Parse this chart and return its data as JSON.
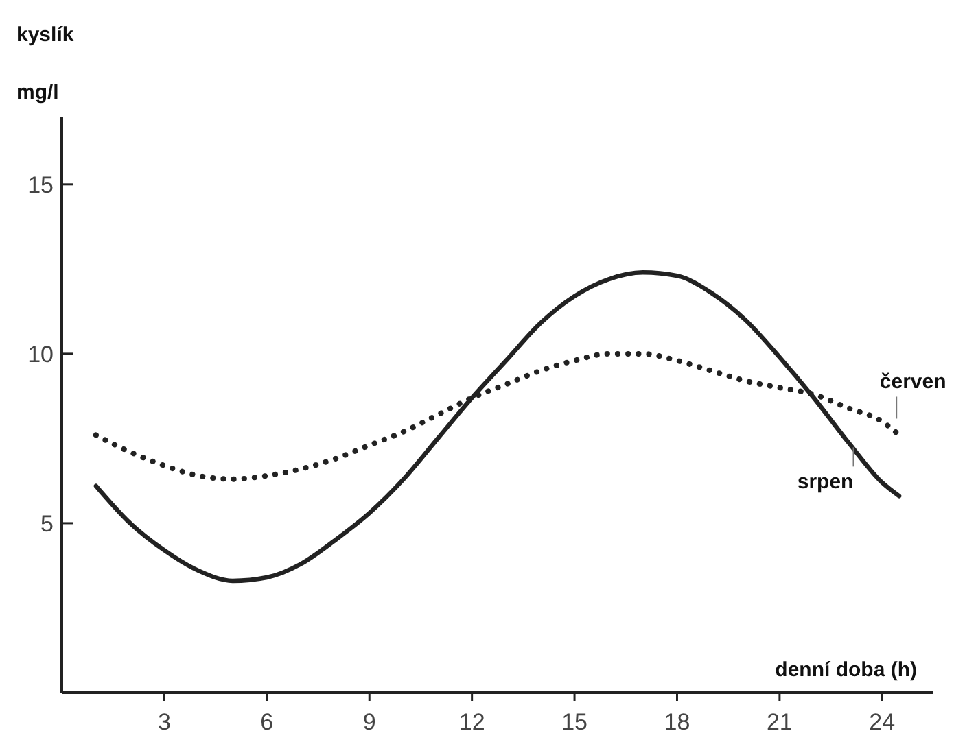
{
  "chart_data": {
    "type": "line",
    "ylabel": "kyslík\nmg/l",
    "xlabel": "denní doba (h)",
    "xlim": [
      0,
      25.5
    ],
    "ylim": [
      0,
      17
    ],
    "xticks": [
      3,
      6,
      9,
      12,
      15,
      18,
      21,
      24
    ],
    "yticks": [
      5,
      10,
      15
    ],
    "grid": false,
    "marker": "none",
    "series": [
      {
        "name": "srpen",
        "color": "#222222",
        "line_style": "solid",
        "x": [
          1,
          2,
          3,
          4,
          5,
          6,
          7,
          8,
          9,
          10,
          11,
          12,
          13,
          14,
          15,
          16,
          17,
          18,
          19,
          20,
          21,
          22,
          23,
          24,
          24.5
        ],
        "values": [
          6.1,
          5.0,
          4.2,
          3.6,
          3.3,
          3.4,
          3.8,
          4.5,
          5.3,
          6.3,
          7.5,
          8.7,
          9.8,
          10.9,
          11.7,
          12.2,
          12.4,
          12.3,
          11.8,
          11.0,
          9.9,
          8.7,
          7.4,
          6.2,
          5.8
        ]
      },
      {
        "name": "červen",
        "color": "#222222",
        "line_style": "dotted",
        "x": [
          1,
          2,
          3,
          4,
          5,
          6,
          7,
          8,
          9,
          10,
          11,
          12,
          13,
          14,
          15,
          16,
          17,
          18,
          19,
          20,
          21,
          22,
          23,
          24,
          24.5
        ],
        "values": [
          7.6,
          7.1,
          6.7,
          6.4,
          6.3,
          6.4,
          6.6,
          6.9,
          7.3,
          7.7,
          8.2,
          8.7,
          9.1,
          9.5,
          9.8,
          10.0,
          10.0,
          9.8,
          9.5,
          9.2,
          9.0,
          8.8,
          8.4,
          8.0,
          7.6
        ]
      }
    ]
  }
}
